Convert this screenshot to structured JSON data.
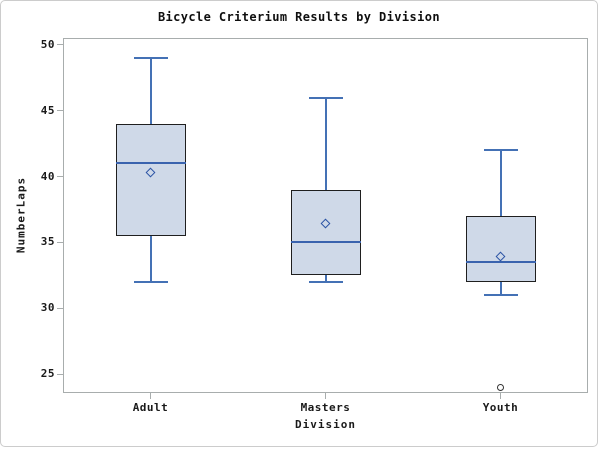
{
  "chart_data": {
    "type": "boxplot",
    "title": "Bicycle Criterium Results by Division",
    "xlabel": "Division",
    "ylabel": "NumberLaps",
    "ylim": [
      23.56,
      50.53
    ],
    "yticks": [
      25,
      30,
      35,
      40,
      45,
      50
    ],
    "grid": false,
    "legend": "none",
    "categories": [
      "Adult",
      "Masters",
      "Youth"
    ],
    "boxes": [
      {
        "category": "Adult",
        "whisker_low": 32,
        "q1": 35.5,
        "median": 41,
        "q3": 44,
        "whisker_high": 49,
        "mean": 40.3,
        "outliers": []
      },
      {
        "category": "Masters",
        "whisker_low": 32,
        "q1": 32.5,
        "median": 35,
        "q3": 39,
        "whisker_high": 46,
        "mean": 36.4,
        "outliers": []
      },
      {
        "category": "Youth",
        "whisker_low": 31,
        "q1": 32,
        "median": 33.5,
        "q3": 37,
        "whisker_high": 42,
        "mean": 33.9,
        "outliers": [
          24
        ]
      }
    ]
  },
  "colors": {
    "box_fill": "#cfd9e8",
    "box_border": "#1f1f1f",
    "whisker": "#4471b5",
    "median": "#3a63ae",
    "mean_marker": "#2c54a5",
    "outlier_outline": "#333333",
    "axis_line": "#a8adad",
    "text": "#1a1a1a",
    "background": "#ffffff",
    "frame_border": "#cccccc"
  }
}
